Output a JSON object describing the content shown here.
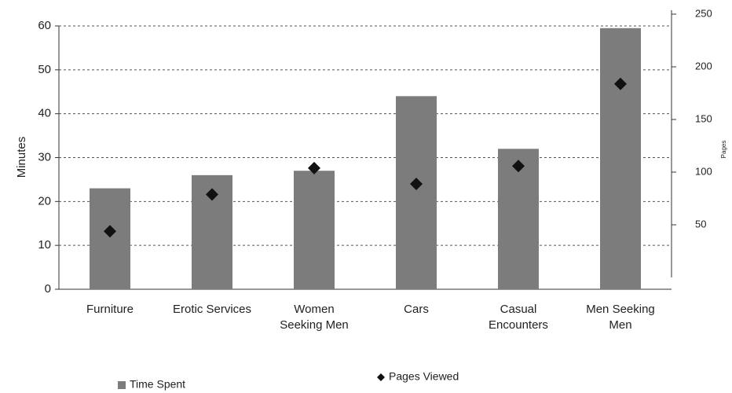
{
  "chart_data": {
    "type": "bar",
    "categories": [
      "Furniture",
      "Erotic Services",
      "Women\nSeeking Men",
      "Cars",
      "Casual\nEncounters",
      "Men Seeking\nMen"
    ],
    "series": [
      {
        "name": "Time Spent",
        "type": "bar",
        "color": "#7c7c7c",
        "values": [
          23,
          26,
          27,
          44,
          32,
          59.5
        ]
      },
      {
        "name": "Pages Viewed",
        "type": "scatter",
        "axis": "y2",
        "color": "#111111",
        "values": [
          55,
          90,
          115,
          100,
          117,
          195
        ]
      }
    ],
    "ylabel": "Minutes",
    "y2label": "Pages",
    "ylim": [
      0,
      60
    ],
    "yticks": [
      0,
      10,
      20,
      30,
      40,
      50,
      60
    ],
    "y2lim": [
      0,
      250
    ],
    "y2ticks": [
      50,
      100,
      150,
      200,
      250
    ],
    "grid": true
  }
}
